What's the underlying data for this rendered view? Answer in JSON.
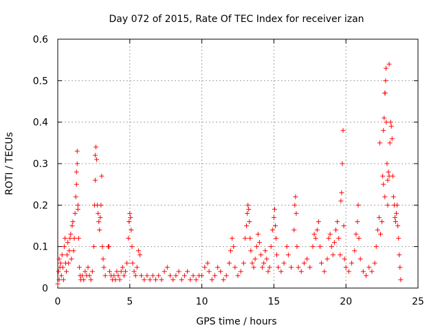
{
  "chart_data": {
    "type": "scatter",
    "title": "Day 072 of 2015, Rate Of TEC Index for receiver izan",
    "xlabel": "GPS time / hours",
    "ylabel": "ROTI / TECUs",
    "xlim": [
      0,
      25
    ],
    "ylim": [
      0,
      0.6
    ],
    "xticks": [
      "0",
      "5",
      "10",
      "15",
      "20",
      "25"
    ],
    "yticks": [
      "0",
      "0.1",
      "0.2",
      "0.3",
      "0.4",
      "0.5",
      "0.6"
    ],
    "grid": true,
    "marker": "+",
    "color": "#ff0000",
    "series": [
      {
        "points": [
          [
            0.0,
            0.01
          ],
          [
            0.05,
            0.04
          ],
          [
            0.1,
            0.07
          ],
          [
            0.1,
            0.02
          ],
          [
            0.15,
            0.05
          ],
          [
            0.2,
            0.06
          ],
          [
            0.25,
            0.03
          ],
          [
            0.3,
            0.08
          ],
          [
            0.35,
            0.05
          ],
          [
            0.4,
            0.02
          ],
          [
            0.45,
            0.1
          ],
          [
            0.5,
            0.12
          ],
          [
            0.55,
            0.06
          ],
          [
            0.6,
            0.04
          ],
          [
            0.65,
            0.08
          ],
          [
            0.7,
            0.11
          ],
          [
            0.75,
            0.06
          ],
          [
            0.8,
            0.09
          ],
          [
            0.85,
            0.12
          ],
          [
            0.9,
            0.13
          ],
          [
            0.95,
            0.07
          ],
          [
            1.0,
            0.15
          ],
          [
            1.05,
            0.16
          ],
          [
            1.1,
            0.09
          ],
          [
            1.15,
            0.12
          ],
          [
            1.2,
            0.18
          ],
          [
            1.25,
            0.22
          ],
          [
            1.3,
            0.25
          ],
          [
            1.3,
            0.28
          ],
          [
            1.35,
            0.33
          ],
          [
            1.35,
            0.3
          ],
          [
            1.4,
            0.2
          ],
          [
            1.4,
            0.19
          ],
          [
            1.45,
            0.12
          ],
          [
            1.5,
            0.05
          ],
          [
            1.55,
            0.03
          ],
          [
            1.6,
            0.02
          ],
          [
            1.7,
            0.03
          ],
          [
            1.8,
            0.02
          ],
          [
            1.9,
            0.04
          ],
          [
            2.0,
            0.03
          ],
          [
            2.1,
            0.05
          ],
          [
            2.2,
            0.03
          ],
          [
            2.3,
            0.02
          ],
          [
            2.4,
            0.04
          ],
          [
            2.5,
            0.1
          ],
          [
            2.55,
            0.2
          ],
          [
            2.6,
            0.26
          ],
          [
            2.6,
            0.32
          ],
          [
            2.65,
            0.34
          ],
          [
            2.7,
            0.31
          ],
          [
            2.75,
            0.2
          ],
          [
            2.8,
            0.18
          ],
          [
            2.85,
            0.16
          ],
          [
            2.9,
            0.14
          ],
          [
            2.95,
            0.17
          ],
          [
            3.0,
            0.2
          ],
          [
            3.05,
            0.27
          ],
          [
            3.1,
            0.1
          ],
          [
            3.15,
            0.07
          ],
          [
            3.2,
            0.05
          ],
          [
            3.3,
            0.03
          ],
          [
            3.5,
            0.1
          ],
          [
            3.55,
            0.1
          ],
          [
            3.6,
            0.04
          ],
          [
            3.7,
            0.03
          ],
          [
            3.8,
            0.02
          ],
          [
            3.9,
            0.03
          ],
          [
            4.0,
            0.02
          ],
          [
            4.1,
            0.04
          ],
          [
            4.2,
            0.03
          ],
          [
            4.3,
            0.02
          ],
          [
            4.4,
            0.04
          ],
          [
            4.5,
            0.05
          ],
          [
            4.6,
            0.03
          ],
          [
            4.7,
            0.04
          ],
          [
            4.8,
            0.06
          ],
          [
            4.9,
            0.12
          ],
          [
            4.95,
            0.16
          ],
          [
            5.0,
            0.18
          ],
          [
            5.05,
            0.17
          ],
          [
            5.1,
            0.14
          ],
          [
            5.15,
            0.1
          ],
          [
            5.2,
            0.06
          ],
          [
            5.3,
            0.04
          ],
          [
            5.4,
            0.03
          ],
          [
            5.5,
            0.05
          ],
          [
            5.6,
            0.09
          ],
          [
            5.7,
            0.08
          ],
          [
            5.8,
            0.03
          ],
          [
            6.0,
            0.02
          ],
          [
            6.2,
            0.03
          ],
          [
            6.4,
            0.02
          ],
          [
            6.6,
            0.03
          ],
          [
            6.8,
            0.02
          ],
          [
            7.0,
            0.03
          ],
          [
            7.2,
            0.02
          ],
          [
            7.4,
            0.04
          ],
          [
            7.6,
            0.05
          ],
          [
            7.8,
            0.03
          ],
          [
            8.0,
            0.02
          ],
          [
            8.2,
            0.03
          ],
          [
            8.4,
            0.04
          ],
          [
            8.6,
            0.02
          ],
          [
            8.8,
            0.03
          ],
          [
            9.0,
            0.04
          ],
          [
            9.2,
            0.02
          ],
          [
            9.4,
            0.03
          ],
          [
            9.6,
            0.02
          ],
          [
            9.8,
            0.03
          ],
          [
            10.0,
            0.03
          ],
          [
            10.2,
            0.05
          ],
          [
            10.4,
            0.06
          ],
          [
            10.5,
            0.04
          ],
          [
            10.7,
            0.02
          ],
          [
            10.9,
            0.03
          ],
          [
            11.1,
            0.05
          ],
          [
            11.3,
            0.04
          ],
          [
            11.5,
            0.02
          ],
          [
            11.7,
            0.03
          ],
          [
            11.9,
            0.06
          ],
          [
            12.0,
            0.09
          ],
          [
            12.1,
            0.12
          ],
          [
            12.2,
            0.1
          ],
          [
            12.3,
            0.05
          ],
          [
            12.5,
            0.03
          ],
          [
            12.7,
            0.04
          ],
          [
            12.9,
            0.06
          ],
          [
            13.0,
            0.12
          ],
          [
            13.1,
            0.15
          ],
          [
            13.15,
            0.18
          ],
          [
            13.2,
            0.2
          ],
          [
            13.25,
            0.19
          ],
          [
            13.3,
            0.16
          ],
          [
            13.35,
            0.12
          ],
          [
            13.4,
            0.09
          ],
          [
            13.5,
            0.06
          ],
          [
            13.6,
            0.05
          ],
          [
            13.7,
            0.07
          ],
          [
            13.8,
            0.1
          ],
          [
            13.9,
            0.13
          ],
          [
            14.0,
            0.11
          ],
          [
            14.1,
            0.08
          ],
          [
            14.2,
            0.05
          ],
          [
            14.3,
            0.06
          ],
          [
            14.4,
            0.09
          ],
          [
            14.5,
            0.07
          ],
          [
            14.6,
            0.04
          ],
          [
            14.7,
            0.05
          ],
          [
            14.8,
            0.1
          ],
          [
            14.9,
            0.14
          ],
          [
            15.0,
            0.17
          ],
          [
            15.05,
            0.19
          ],
          [
            15.1,
            0.15
          ],
          [
            15.15,
            0.12
          ],
          [
            15.2,
            0.08
          ],
          [
            15.3,
            0.05
          ],
          [
            15.5,
            0.04
          ],
          [
            15.7,
            0.06
          ],
          [
            15.9,
            0.1
          ],
          [
            16.0,
            0.08
          ],
          [
            16.2,
            0.05
          ],
          [
            16.4,
            0.14
          ],
          [
            16.45,
            0.2
          ],
          [
            16.5,
            0.22
          ],
          [
            16.55,
            0.18
          ],
          [
            16.6,
            0.1
          ],
          [
            16.7,
            0.05
          ],
          [
            16.9,
            0.04
          ],
          [
            17.1,
            0.06
          ],
          [
            17.3,
            0.07
          ],
          [
            17.5,
            0.05
          ],
          [
            17.7,
            0.1
          ],
          [
            17.8,
            0.13
          ],
          [
            17.9,
            0.12
          ],
          [
            18.0,
            0.14
          ],
          [
            18.1,
            0.16
          ],
          [
            18.2,
            0.1
          ],
          [
            18.3,
            0.06
          ],
          [
            18.5,
            0.04
          ],
          [
            18.7,
            0.07
          ],
          [
            18.8,
            0.12
          ],
          [
            18.9,
            0.13
          ],
          [
            19.0,
            0.1
          ],
          [
            19.1,
            0.08
          ],
          [
            19.2,
            0.11
          ],
          [
            19.3,
            0.14
          ],
          [
            19.4,
            0.16
          ],
          [
            19.5,
            0.12
          ],
          [
            19.6,
            0.08
          ],
          [
            19.65,
            0.21
          ],
          [
            19.7,
            0.23
          ],
          [
            19.75,
            0.3
          ],
          [
            19.8,
            0.38
          ],
          [
            19.85,
            0.15
          ],
          [
            19.9,
            0.07
          ],
          [
            20.0,
            0.05
          ],
          [
            20.2,
            0.04
          ],
          [
            20.4,
            0.06
          ],
          [
            20.6,
            0.09
          ],
          [
            20.7,
            0.13
          ],
          [
            20.8,
            0.16
          ],
          [
            20.85,
            0.2
          ],
          [
            20.9,
            0.12
          ],
          [
            21.0,
            0.07
          ],
          [
            21.2,
            0.04
          ],
          [
            21.4,
            0.03
          ],
          [
            21.6,
            0.05
          ],
          [
            21.8,
            0.04
          ],
          [
            22.0,
            0.06
          ],
          [
            22.1,
            0.1
          ],
          [
            22.2,
            0.14
          ],
          [
            22.3,
            0.17
          ],
          [
            22.35,
            0.35
          ],
          [
            22.4,
            0.13
          ],
          [
            22.5,
            0.16
          ],
          [
            22.55,
            0.27
          ],
          [
            22.6,
            0.38
          ],
          [
            22.65,
            0.41
          ],
          [
            22.7,
            0.47
          ],
          [
            22.72,
            0.47
          ],
          [
            22.75,
            0.5
          ],
          [
            22.78,
            0.53
          ],
          [
            22.8,
            0.4
          ],
          [
            22.85,
            0.3
          ],
          [
            22.9,
            0.26
          ],
          [
            22.95,
            0.28
          ],
          [
            23.0,
            0.27
          ],
          [
            23.05,
            0.35
          ],
          [
            23.1,
            0.4
          ],
          [
            23.15,
            0.39
          ],
          [
            23.2,
            0.36
          ],
          [
            23.25,
            0.27
          ],
          [
            23.3,
            0.22
          ],
          [
            23.35,
            0.2
          ],
          [
            23.4,
            0.17
          ],
          [
            23.45,
            0.16
          ],
          [
            23.5,
            0.18
          ],
          [
            23.55,
            0.2
          ],
          [
            23.6,
            0.15
          ],
          [
            23.65,
            0.12
          ],
          [
            23.7,
            0.08
          ],
          [
            23.75,
            0.05
          ],
          [
            23.8,
            0.02
          ],
          [
            23.0,
            0.54
          ],
          [
            22.9,
            0.2
          ],
          [
            22.7,
            0.22
          ],
          [
            22.6,
            0.25
          ]
        ]
      }
    ]
  }
}
